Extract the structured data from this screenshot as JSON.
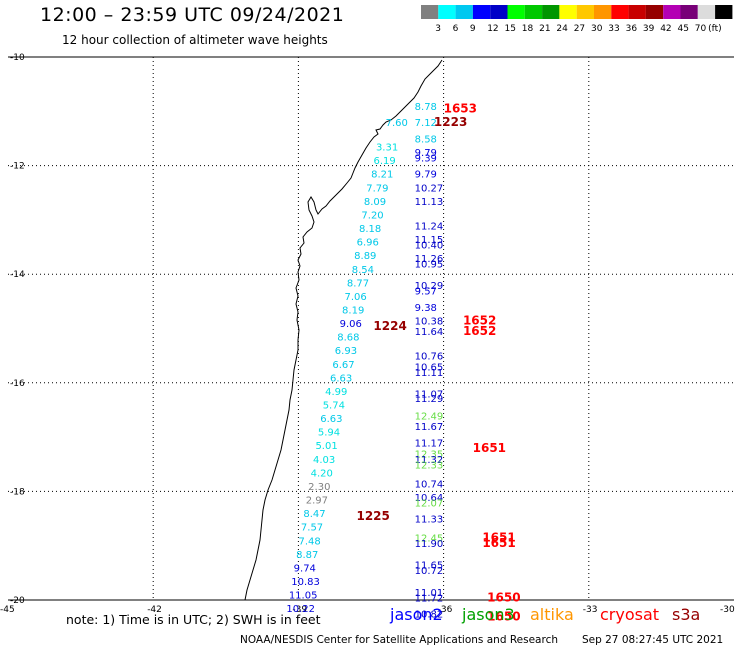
{
  "header": {
    "title": "12:00 – 23:59 UTC 09/24/2021",
    "subtitle": "12 hour collection of altimeter wave heights"
  },
  "scale": {
    "colors": [
      "#808080",
      "#00ffff",
      "#00c8f0",
      "#0000ff",
      "#0000c8",
      "#00ff00",
      "#00c800",
      "#009600",
      "#ffff00",
      "#ffc800",
      "#ff9600",
      "#ff0000",
      "#c80000",
      "#960000",
      "#b400b4",
      "#780078",
      "#dcdcdc",
      "#000000"
    ],
    "labels": [
      "3",
      "6",
      "9",
      "12",
      "15",
      "18",
      "21",
      "24",
      "27",
      "30",
      "33",
      "36",
      "39",
      "42",
      "45",
      "70",
      "(ft)"
    ]
  },
  "axes": {
    "lat_labels": [
      "-10",
      "-12",
      "-14",
      "-16",
      "-18",
      "-20"
    ],
    "lon_labels": [
      "-45",
      "-42",
      "-39",
      "-36",
      "-33",
      "-30"
    ]
  },
  "tracks": [
    {
      "name": "west",
      "color": "#00c8e8",
      "labels": [
        {
          "text": "8.78",
          "lat": -10.9,
          "lon": -36.35,
          "color": "#00c8e8"
        },
        {
          "text": "7.60",
          "lat": -11.2,
          "lon": -36.95,
          "color": "#00c8e8"
        },
        {
          "text": "7.12",
          "lat": -11.2,
          "lon": -36.35,
          "color": "#00c8e8"
        },
        {
          "text": "3.31",
          "lat": -11.65,
          "lon": -37.15,
          "color": "#00e0e0"
        },
        {
          "text": "6.19",
          "lat": -11.9,
          "lon": -37.2,
          "color": "#00e0e0"
        },
        {
          "text": "8.21",
          "lat": -12.15,
          "lon": -37.25,
          "color": "#00c8e8"
        },
        {
          "text": "7.79",
          "lat": -12.4,
          "lon": -37.35,
          "color": "#00c8e8"
        },
        {
          "text": "8.09",
          "lat": -12.65,
          "lon": -37.4,
          "color": "#00c8e8"
        },
        {
          "text": "7.20",
          "lat": -12.9,
          "lon": -37.45,
          "color": "#00c8e8"
        },
        {
          "text": "8.18",
          "lat": -13.15,
          "lon": -37.5,
          "color": "#00c8e8"
        },
        {
          "text": "6.96",
          "lat": -13.4,
          "lon": -37.55,
          "color": "#00c8e8"
        },
        {
          "text": "8.89",
          "lat": -13.65,
          "lon": -37.6,
          "color": "#00c8e8"
        },
        {
          "text": "8.54",
          "lat": -13.9,
          "lon": -37.65,
          "color": "#00c8e8"
        },
        {
          "text": "8.77",
          "lat": -14.15,
          "lon": -37.75,
          "color": "#00c8e8"
        },
        {
          "text": "7.06",
          "lat": -14.4,
          "lon": -37.8,
          "color": "#00c8e8"
        },
        {
          "text": "8.19",
          "lat": -14.65,
          "lon": -37.85,
          "color": "#00c8e8"
        },
        {
          "text": "9.06",
          "lat": -14.9,
          "lon": -37.9,
          "color": "#0000dc"
        },
        {
          "text": "8.68",
          "lat": -15.15,
          "lon": -37.95,
          "color": "#00c8e8"
        },
        {
          "text": "6.93",
          "lat": -15.4,
          "lon": -38.0,
          "color": "#00c8e8"
        },
        {
          "text": "6.67",
          "lat": -15.65,
          "lon": -38.05,
          "color": "#00c8e8"
        },
        {
          "text": "6.63",
          "lat": -15.9,
          "lon": -38.1,
          "color": "#00c8e8"
        },
        {
          "text": "4.99",
          "lat": -16.15,
          "lon": -38.2,
          "color": "#00e0e0"
        },
        {
          "text": "5.74",
          "lat": -16.4,
          "lon": -38.25,
          "color": "#00e0e0"
        },
        {
          "text": "6.63",
          "lat": -16.65,
          "lon": -38.3,
          "color": "#00c8e8"
        },
        {
          "text": "5.94",
          "lat": -16.9,
          "lon": -38.35,
          "color": "#00e0e0"
        },
        {
          "text": "5.01",
          "lat": -17.15,
          "lon": -38.4,
          "color": "#00e0e0"
        },
        {
          "text": "4.03",
          "lat": -17.4,
          "lon": -38.45,
          "color": "#00e0e0"
        },
        {
          "text": "4.20",
          "lat": -17.65,
          "lon": -38.5,
          "color": "#00e0e0"
        },
        {
          "text": "2.30",
          "lat": -17.9,
          "lon": -38.55,
          "color": "#808080"
        },
        {
          "text": "2.97",
          "lat": -18.15,
          "lon": -38.6,
          "color": "#808080"
        },
        {
          "text": "8.47",
          "lat": -18.4,
          "lon": -38.65,
          "color": "#00c8e8"
        },
        {
          "text": "7.57",
          "lat": -18.65,
          "lon": -38.7,
          "color": "#00c8e8"
        },
        {
          "text": "7.48",
          "lat": -18.9,
          "lon": -38.75,
          "color": "#00c8e8"
        },
        {
          "text": "8.87",
          "lat": -19.15,
          "lon": -38.8,
          "color": "#00c8e8"
        },
        {
          "text": "9.74",
          "lat": -19.4,
          "lon": -38.85,
          "color": "#0000dc"
        },
        {
          "text": "10.83",
          "lat": -19.65,
          "lon": -38.9,
          "color": "#0000dc"
        },
        {
          "text": "11.05",
          "lat": -19.9,
          "lon": -38.95,
          "color": "#0000dc"
        },
        {
          "text": "10.22",
          "lat": -20.15,
          "lon": -39.0,
          "color": "#0000dc"
        }
      ]
    },
    {
      "name": "east",
      "color": "#0000c8",
      "labels": [
        {
          "text": "8.58",
          "lat": -11.5,
          "lon": -36.35,
          "color": "#00c8e8"
        },
        {
          "text": "9.79",
          "lat": -11.75,
          "lon": -36.35,
          "color": "#0000dc"
        },
        {
          "text": "9.39",
          "lat": -11.85,
          "lon": -36.35,
          "color": "#0000dc"
        },
        {
          "text": "9.79",
          "lat": -12.15,
          "lon": -36.35,
          "color": "#0000dc"
        },
        {
          "text": "10.27",
          "lat": -12.4,
          "lon": -36.35,
          "color": "#0000c8"
        },
        {
          "text": "11.13",
          "lat": -12.65,
          "lon": -36.35,
          "color": "#0000c8"
        },
        {
          "text": "11.24",
          "lat": -13.1,
          "lon": -36.35,
          "color": "#0000c8"
        },
        {
          "text": "11.15",
          "lat": -13.35,
          "lon": -36.35,
          "color": "#0000c8"
        },
        {
          "text": "10.40",
          "lat": -13.45,
          "lon": -36.35,
          "color": "#0000c8"
        },
        {
          "text": "11.26",
          "lat": -13.7,
          "lon": -36.35,
          "color": "#0000c8"
        },
        {
          "text": "10.95",
          "lat": -13.8,
          "lon": -36.35,
          "color": "#0000c8"
        },
        {
          "text": "10.29",
          "lat": -14.2,
          "lon": -36.35,
          "color": "#0000c8"
        },
        {
          "text": "9.57",
          "lat": -14.3,
          "lon": -36.35,
          "color": "#0000dc"
        },
        {
          "text": "9.38",
          "lat": -14.6,
          "lon": -36.35,
          "color": "#0000dc"
        },
        {
          "text": "10.38",
          "lat": -14.85,
          "lon": -36.35,
          "color": "#0000c8"
        },
        {
          "text": "11.64",
          "lat": -15.05,
          "lon": -36.35,
          "color": "#0000c8"
        },
        {
          "text": "10.76",
          "lat": -15.5,
          "lon": -36.35,
          "color": "#0000c8"
        },
        {
          "text": "10.65",
          "lat": -15.7,
          "lon": -36.35,
          "color": "#0000c8"
        },
        {
          "text": "11.11",
          "lat": -15.8,
          "lon": -36.35,
          "color": "#0000c8"
        },
        {
          "text": "11.07",
          "lat": -16.2,
          "lon": -36.35,
          "color": "#0000c8"
        },
        {
          "text": "11.29",
          "lat": -16.28,
          "lon": -36.35,
          "color": "#0000c8"
        },
        {
          "text": "12.49",
          "lat": -16.6,
          "lon": -36.35,
          "color": "#66dd44"
        },
        {
          "text": "11.67",
          "lat": -16.8,
          "lon": -36.35,
          "color": "#0000c8"
        },
        {
          "text": "11.17",
          "lat": -17.1,
          "lon": -36.35,
          "color": "#0000c8"
        },
        {
          "text": "12.35",
          "lat": -17.3,
          "lon": -36.35,
          "color": "#66dd44"
        },
        {
          "text": "11.32",
          "lat": -17.4,
          "lon": -36.35,
          "color": "#0000c8"
        },
        {
          "text": "12.33",
          "lat": -17.5,
          "lon": -36.35,
          "color": "#66dd44"
        },
        {
          "text": "10.74",
          "lat": -17.85,
          "lon": -36.35,
          "color": "#0000c8"
        },
        {
          "text": "10.64",
          "lat": -18.1,
          "lon": -36.35,
          "color": "#0000c8"
        },
        {
          "text": "12.07",
          "lat": -18.2,
          "lon": -36.35,
          "color": "#66dd44"
        },
        {
          "text": "11.33",
          "lat": -18.5,
          "lon": -36.35,
          "color": "#0000c8"
        },
        {
          "text": "12.45",
          "lat": -18.85,
          "lon": -36.35,
          "color": "#66dd44"
        },
        {
          "text": "11.90",
          "lat": -18.95,
          "lon": -36.35,
          "color": "#0000c8"
        },
        {
          "text": "11.65",
          "lat": -19.35,
          "lon": -36.35,
          "color": "#0000c8"
        },
        {
          "text": "10.72",
          "lat": -19.45,
          "lon": -36.35,
          "color": "#0000c8"
        },
        {
          "text": "11.01",
          "lat": -19.85,
          "lon": -36.35,
          "color": "#0000c8"
        },
        {
          "text": "11.72",
          "lat": -19.95,
          "lon": -36.35,
          "color": "#0000c8"
        },
        {
          "text": "10.82",
          "lat": -20.25,
          "lon": -36.35,
          "color": "#0000c8"
        }
      ]
    }
  ],
  "pass_times": [
    {
      "text": "1653",
      "lat": -10.95,
      "lon": -36.0,
      "color": "#ff0000"
    },
    {
      "text": "1223",
      "lat": -11.2,
      "lon": -36.2,
      "color": "#960000"
    },
    {
      "text": "1224",
      "lat": -14.95,
      "lon": -37.45,
      "color": "#960000"
    },
    {
      "text": "1652",
      "lat": -14.85,
      "lon": -35.6,
      "color": "#ff0000"
    },
    {
      "text": "1652",
      "lat": -15.05,
      "lon": -35.6,
      "color": "#ff0000"
    },
    {
      "text": "1651",
      "lat": -17.2,
      "lon": -35.4,
      "color": "#ff0000"
    },
    {
      "text": "1225",
      "lat": -18.45,
      "lon": -37.8,
      "color": "#960000"
    },
    {
      "text": "1651",
      "lat": -18.85,
      "lon": -35.2,
      "color": "#ff0000"
    },
    {
      "text": "1651",
      "lat": -18.95,
      "lon": -35.2,
      "color": "#ff0000"
    },
    {
      "text": "1650",
      "lat": -19.95,
      "lon": -35.1,
      "color": "#ff0000"
    },
    {
      "text": "1650",
      "lat": -20.3,
      "lon": -35.1,
      "color": "#ff0000"
    }
  ],
  "footer": {
    "note": "note: 1) Time is in UTC; 2) SWH is in feet",
    "missions": [
      {
        "name": "jason2",
        "color": "#0000ff"
      },
      {
        "name": "jason3",
        "color": "#00a000"
      },
      {
        "name": "altika",
        "color": "#ff9600"
      },
      {
        "name": "cryosat",
        "color": "#ff0000"
      },
      {
        "name": "s3a",
        "color": "#960000"
      }
    ],
    "credit": "NOAA/NESDIS Center for Satellite Applications and Research",
    "timestamp": "Sep 27 08:27:45 UTC 2021"
  }
}
